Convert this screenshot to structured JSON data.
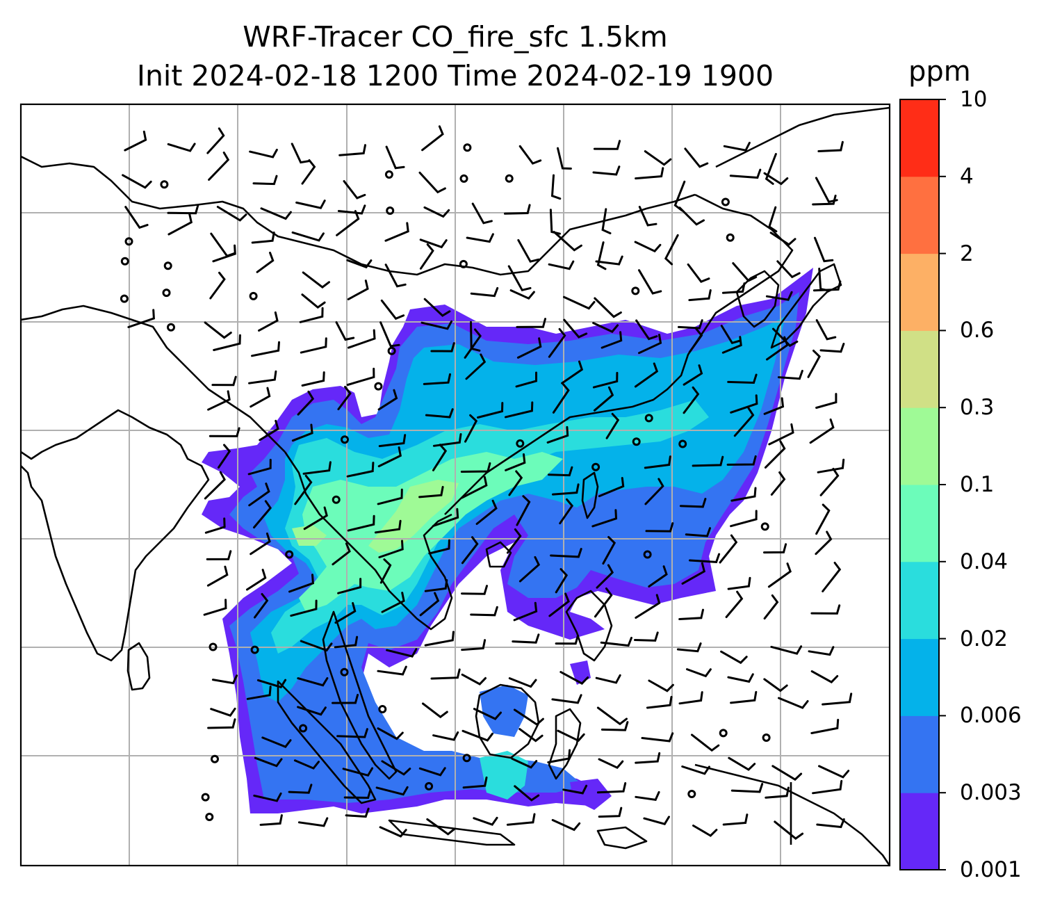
{
  "title_line1": "WRF-Tracer CO_fire_sfc 1.5km",
  "title_line2": "Init 2024-02-18 1200 Time 2024-02-19 1900",
  "colorbar": {
    "unit": "ppm",
    "levels": [
      "0.001",
      "0.003",
      "0.006",
      "0.02",
      "0.04",
      "0.1",
      "0.3",
      "0.6",
      "2",
      "4",
      "10"
    ],
    "colors": [
      "#6528f8",
      "#3474f2",
      "#04b2ea",
      "#2adddd",
      "#6cfcba",
      "#9ffa96",
      "#d0e086",
      "#fdb065",
      "#ff7040",
      "#ff2d17"
    ]
  },
  "map": {
    "variable": "CO_fire_sfc",
    "region": "Southeast Asia",
    "gridlines": true,
    "coastline_color": "#000000",
    "gridline_color": "#b0b0b0",
    "wind_barbs": true,
    "calm_marker": "circle"
  }
}
